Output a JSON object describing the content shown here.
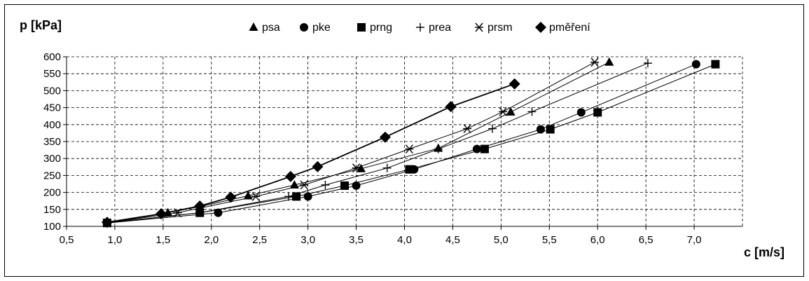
{
  "chart_data": {
    "type": "scatter",
    "ylabel": "p [kPa]",
    "xlabel": "c [m/s]",
    "xlim": [
      0.5,
      7.5
    ],
    "ylim": [
      100,
      600
    ],
    "xticks": [
      "0,5",
      "1,0",
      "1,5",
      "2,0",
      "2,5",
      "3,0",
      "3,5",
      "4,0",
      "4,5",
      "5,0",
      "5,5",
      "6,0",
      "6,5",
      "7,0"
    ],
    "yticks": [
      "100",
      "150",
      "200",
      "250",
      "300",
      "350",
      "400",
      "450",
      "500",
      "550",
      "600"
    ],
    "grid": true,
    "grid_style": "dashed",
    "legend_position": "top",
    "series": [
      {
        "name": "psa",
        "marker": "triangle",
        "points": [
          [
            0.92,
            110
          ],
          [
            1.55,
            140
          ],
          [
            1.88,
            158
          ],
          [
            2.38,
            190
          ],
          [
            2.86,
            222
          ],
          [
            3.55,
            270
          ],
          [
            4.35,
            330
          ],
          [
            5.1,
            437
          ],
          [
            6.12,
            584
          ]
        ]
      },
      {
        "name": "pke",
        "marker": "circle",
        "points": [
          [
            0.92,
            110
          ],
          [
            2.07,
            140
          ],
          [
            3.0,
            188
          ],
          [
            3.5,
            220
          ],
          [
            4.1,
            268
          ],
          [
            4.75,
            328
          ],
          [
            5.41,
            386
          ],
          [
            5.83,
            436
          ],
          [
            7.02,
            578
          ]
        ]
      },
      {
        "name": "prng",
        "marker": "square",
        "points": [
          [
            0.92,
            110
          ],
          [
            1.88,
            140
          ],
          [
            2.88,
            188
          ],
          [
            3.38,
            220
          ],
          [
            4.05,
            268
          ],
          [
            4.83,
            328
          ],
          [
            5.51,
            386
          ],
          [
            6.0,
            436
          ],
          [
            7.22,
            578
          ]
        ]
      },
      {
        "name": "prea",
        "marker": "plus",
        "points": [
          [
            0.92,
            110
          ],
          [
            1.88,
            140
          ],
          [
            2.8,
            188
          ],
          [
            3.18,
            222
          ],
          [
            3.82,
            272
          ],
          [
            4.35,
            328
          ],
          [
            4.91,
            388
          ],
          [
            5.32,
            438
          ],
          [
            6.52,
            581
          ]
        ]
      },
      {
        "name": "prsm",
        "marker": "asterisk",
        "points": [
          [
            0.92,
            110
          ],
          [
            1.65,
            140
          ],
          [
            2.46,
            188
          ],
          [
            2.96,
            222
          ],
          [
            3.5,
            272
          ],
          [
            4.05,
            328
          ],
          [
            4.65,
            388
          ],
          [
            5.02,
            438
          ],
          [
            5.97,
            584
          ]
        ]
      },
      {
        "name": "pměření",
        "marker": "diamond",
        "points": [
          [
            0.92,
            112
          ],
          [
            1.48,
            137
          ],
          [
            1.88,
            160
          ],
          [
            2.2,
            186
          ],
          [
            2.82,
            247
          ],
          [
            3.1,
            276
          ],
          [
            3.8,
            363
          ],
          [
            4.48,
            453
          ],
          [
            5.14,
            520
          ]
        ]
      }
    ]
  }
}
